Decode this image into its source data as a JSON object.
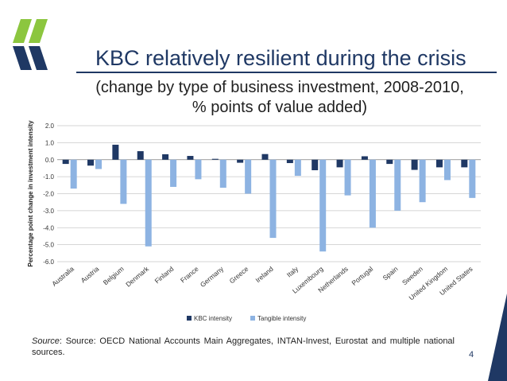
{
  "slide": {
    "title": "KBC relatively resilient during the crisis",
    "subtitle_line1": "(change by type of business investment, 2008-2010,",
    "subtitle_line2": "% points of value added)",
    "source_label": "Source",
    "source_text": ": Source: OECD National Accounts Main Aggregates, INTAN-Invest, Eurostat and multiple national sources.",
    "page_number": "4"
  },
  "colors": {
    "kbc": "#1f3864",
    "tangible": "#8db3e2",
    "brand": "#1f3864",
    "logo_green": "#8cc63f"
  },
  "chart_data": {
    "type": "bar",
    "categories": [
      "Australia",
      "Austria",
      "Belgium",
      "Denmark",
      "Finland",
      "France",
      "Germany",
      "Greece",
      "Ireland",
      "Italy",
      "Luxembourg",
      "Netherlands",
      "Portugal",
      "Spain",
      "Sweden",
      "United Kingdom",
      "United States"
    ],
    "series": [
      {
        "name": "KBC intensity",
        "values": [
          -0.25,
          -0.35,
          0.88,
          0.5,
          0.32,
          0.22,
          0.05,
          -0.18,
          0.33,
          -0.2,
          -0.62,
          -0.45,
          0.2,
          -0.25,
          -0.6,
          -0.45,
          -0.45
        ]
      },
      {
        "name": "Tangible intensity",
        "values": [
          -1.7,
          -0.55,
          -2.6,
          -5.1,
          -1.6,
          -1.15,
          -1.65,
          -2.0,
          -4.6,
          -0.95,
          -5.4,
          -2.1,
          -4.0,
          -3.0,
          -2.5,
          -1.2,
          -2.25
        ]
      }
    ],
    "ylabel": "Percentage point change in investment intensity",
    "xlabel": "",
    "ylim": [
      -6.0,
      2.0
    ],
    "yticks": [
      "2.0",
      "1.0",
      "0.0",
      "-1.0",
      "-2.0",
      "-3.0",
      "-4.0",
      "-5.0",
      "-6.0"
    ],
    "grid": true,
    "legend": "bottom"
  }
}
